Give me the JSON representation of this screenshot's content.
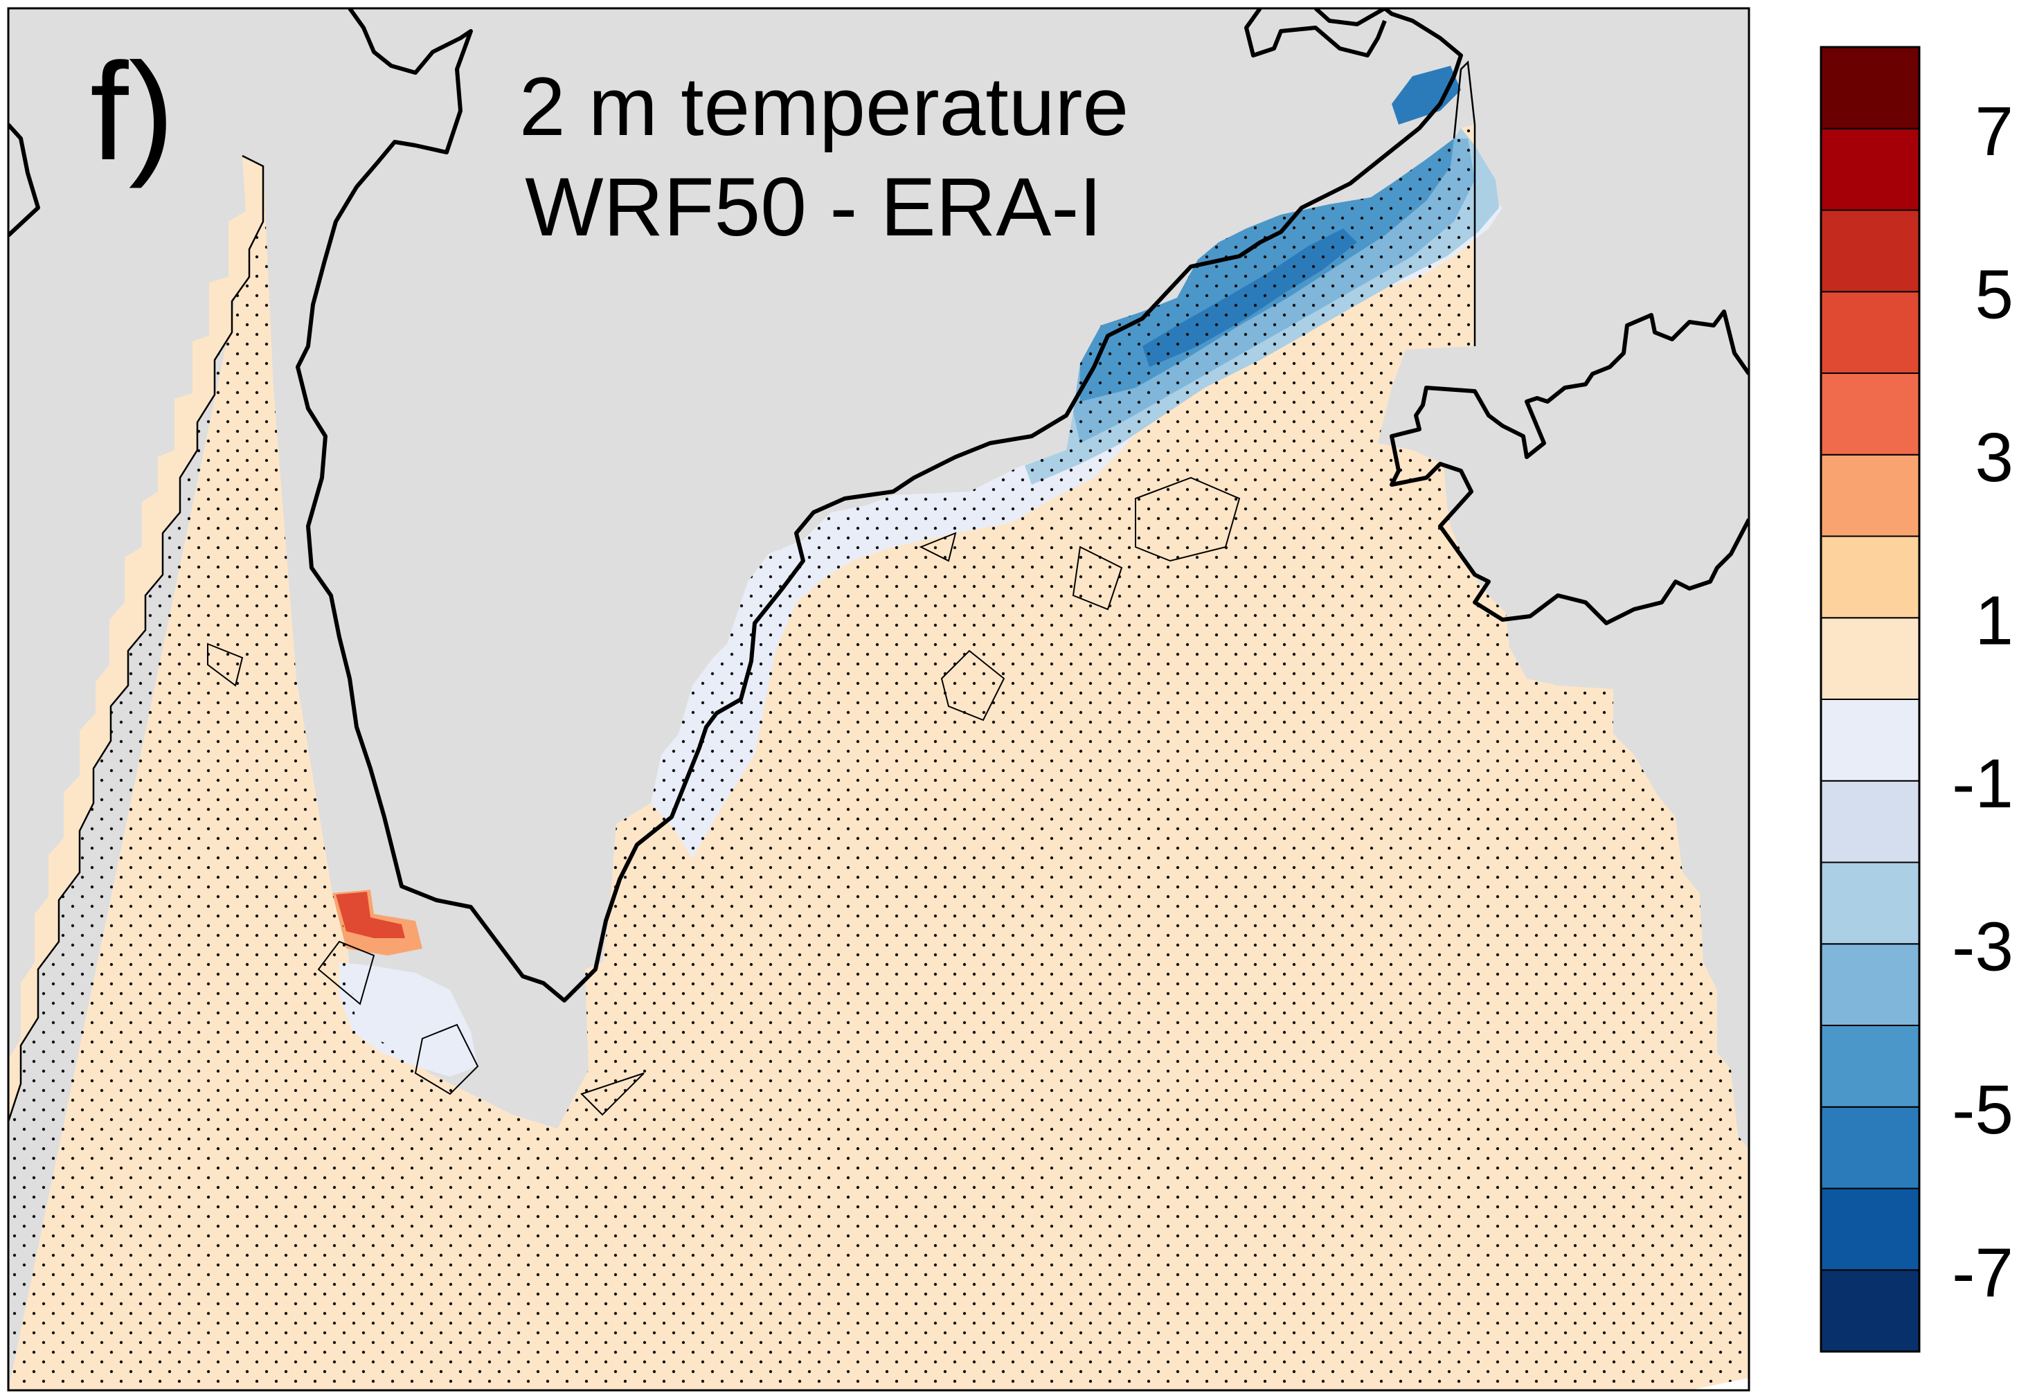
{
  "panel_label": "f)",
  "title": {
    "line1": "2 m temperature",
    "line2": "WRF50 - ERA-I"
  },
  "colors": {
    "land": "#dedede",
    "stipple": "#111111",
    "coast": "#000000",
    "ocean_extreme_low": "#ffffff"
  },
  "colorbar": {
    "colors": [
      "#08306b",
      "#0d57a0",
      "#2b7bba",
      "#4c97c9",
      "#7fb6da",
      "#abcfe5",
      "#d4deef",
      "#e9edf7",
      "#fde6c8",
      "#fdd29c",
      "#f9a470",
      "#f06a4c",
      "#e04a32",
      "#c52a1e",
      "#a50007",
      "#6b0000"
    ],
    "tick_labels": [
      "-7",
      "-5",
      "-3",
      "-1",
      "1",
      "3",
      "5",
      "7"
    ]
  }
}
